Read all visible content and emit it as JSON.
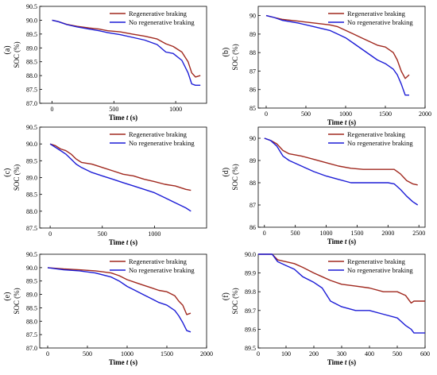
{
  "figure": {
    "series_names": [
      "Regenerative braking",
      "No regenerative braking"
    ],
    "series_colors": [
      "#a0281e",
      "#1c1cd6"
    ]
  },
  "chart_data": [
    {
      "type": "line",
      "panel_label": "(a)",
      "xlabel_main": "Time ",
      "xlabel_var": "t",
      "xlabel_unit": " (s)",
      "ylabel": "SOC (%)",
      "xlim": [
        -100,
        1250
      ],
      "ylim": [
        87.0,
        90.5
      ],
      "xticks": [
        0,
        500,
        1000
      ],
      "yticks": [
        87.0,
        87.5,
        88.0,
        88.5,
        89.0,
        89.5,
        90.0,
        90.5
      ],
      "ytick_labels": [
        "87.0",
        "87.5",
        "88.0",
        "88.5",
        "89.0",
        "89.5",
        "90.0",
        "90.5"
      ],
      "legend": "top-right",
      "series": [
        {
          "name": "Regenerative braking",
          "x": [
            0,
            50,
            120,
            200,
            300,
            380,
            450,
            550,
            650,
            750,
            850,
            920,
            980,
            1050,
            1100,
            1130,
            1160,
            1200
          ],
          "y": [
            90.0,
            89.95,
            89.85,
            89.78,
            89.72,
            89.68,
            89.62,
            89.58,
            89.5,
            89.42,
            89.32,
            89.15,
            89.05,
            88.85,
            88.5,
            88.1,
            87.95,
            88.0
          ]
        },
        {
          "name": "No regenerative braking",
          "x": [
            0,
            50,
            120,
            200,
            300,
            380,
            450,
            550,
            650,
            750,
            850,
            920,
            980,
            1050,
            1100,
            1130,
            1160,
            1200
          ],
          "y": [
            90.0,
            89.95,
            89.84,
            89.76,
            89.68,
            89.62,
            89.55,
            89.48,
            89.38,
            89.28,
            89.12,
            88.85,
            88.8,
            88.55,
            88.1,
            87.7,
            87.65,
            87.65
          ]
        }
      ]
    },
    {
      "type": "line",
      "panel_label": "(b)",
      "xlabel_main": "Time ",
      "xlabel_var": "t",
      "xlabel_unit": " (s)",
      "ylabel": "SOC (%)",
      "xlim": [
        -100,
        2000
      ],
      "ylim": [
        85,
        90.5
      ],
      "xticks": [
        0,
        500,
        1000,
        1500,
        2000
      ],
      "yticks": [
        85,
        86,
        87,
        88,
        89,
        90
      ],
      "ytick_labels": [
        "85",
        "86",
        "87",
        "88",
        "89",
        "90"
      ],
      "legend": "top-right",
      "series": [
        {
          "name": "Regenerative braking",
          "x": [
            0,
            100,
            200,
            400,
            600,
            800,
            900,
            1000,
            1100,
            1200,
            1300,
            1400,
            1500,
            1600,
            1650,
            1700,
            1750,
            1800
          ],
          "y": [
            90.0,
            89.9,
            89.8,
            89.7,
            89.6,
            89.5,
            89.4,
            89.2,
            89.0,
            88.8,
            88.6,
            88.4,
            88.3,
            88.0,
            87.6,
            87.0,
            86.6,
            86.8
          ]
        },
        {
          "name": "No regenerative braking",
          "x": [
            0,
            100,
            200,
            400,
            600,
            800,
            900,
            1000,
            1100,
            1200,
            1300,
            1400,
            1500,
            1600,
            1650,
            1700,
            1750,
            1800
          ],
          "y": [
            90.0,
            89.9,
            89.75,
            89.6,
            89.4,
            89.2,
            89.0,
            88.8,
            88.5,
            88.2,
            87.9,
            87.6,
            87.4,
            87.1,
            86.8,
            86.3,
            85.7,
            85.7
          ]
        }
      ]
    },
    {
      "type": "line",
      "panel_label": "(c)",
      "xlabel_main": "Time ",
      "xlabel_var": "t",
      "xlabel_unit": " (s)",
      "ylabel": "SOC (%)",
      "xlim": [
        -100,
        1500
      ],
      "ylim": [
        87.5,
        90.5
      ],
      "xticks": [
        0,
        500,
        1000
      ],
      "yticks": [
        87.5,
        88.0,
        88.5,
        89.0,
        89.5,
        90.0,
        90.5
      ],
      "ytick_labels": [
        "87.5",
        "88.0",
        "88.5",
        "89.0",
        "89.5",
        "90.0",
        "90.5"
      ],
      "legend": "top-right",
      "series": [
        {
          "name": "Regenerative braking",
          "x": [
            0,
            50,
            100,
            150,
            200,
            250,
            300,
            400,
            500,
            600,
            700,
            800,
            900,
            1000,
            1100,
            1200,
            1300,
            1350
          ],
          "y": [
            90.0,
            89.95,
            89.85,
            89.8,
            89.7,
            89.55,
            89.45,
            89.4,
            89.3,
            89.2,
            89.1,
            89.05,
            88.95,
            88.88,
            88.8,
            88.75,
            88.65,
            88.62
          ]
        },
        {
          "name": "No regenerative braking",
          "x": [
            0,
            50,
            100,
            150,
            200,
            250,
            300,
            400,
            500,
            600,
            700,
            800,
            900,
            1000,
            1100,
            1200,
            1300,
            1350
          ],
          "y": [
            90.0,
            89.9,
            89.8,
            89.7,
            89.55,
            89.4,
            89.3,
            89.15,
            89.05,
            88.95,
            88.85,
            88.75,
            88.65,
            88.55,
            88.4,
            88.25,
            88.1,
            88.0
          ]
        }
      ]
    },
    {
      "type": "line",
      "panel_label": "(d)",
      "xlabel_main": "Time ",
      "xlabel_var": "t",
      "xlabel_unit": " (s)",
      "ylabel": "SOC (%)",
      "xlim": [
        -100,
        2600
      ],
      "ylim": [
        86,
        90.5
      ],
      "xticks": [
        0,
        500,
        1000,
        1500,
        2000,
        2500
      ],
      "yticks": [
        86,
        87,
        88,
        89,
        90
      ],
      "ytick_labels": [
        "86",
        "87",
        "88",
        "89",
        "90"
      ],
      "legend": "top-right",
      "series": [
        {
          "name": "Regenerative braking",
          "x": [
            0,
            100,
            200,
            300,
            400,
            600,
            800,
            1000,
            1200,
            1400,
            1600,
            1800,
            2000,
            2100,
            2200,
            2300,
            2400,
            2480
          ],
          "y": [
            90.0,
            89.9,
            89.75,
            89.45,
            89.3,
            89.2,
            89.05,
            88.9,
            88.75,
            88.65,
            88.6,
            88.6,
            88.6,
            88.6,
            88.4,
            88.1,
            87.95,
            87.9
          ]
        },
        {
          "name": "No regenerative braking",
          "x": [
            0,
            100,
            200,
            300,
            400,
            600,
            800,
            1000,
            1200,
            1400,
            1600,
            1800,
            2000,
            2100,
            2200,
            2300,
            2400,
            2480
          ],
          "y": [
            90.0,
            89.9,
            89.65,
            89.2,
            89.0,
            88.75,
            88.5,
            88.3,
            88.15,
            88.0,
            88.0,
            88.0,
            88.0,
            87.95,
            87.7,
            87.4,
            87.15,
            87.0
          ]
        }
      ]
    },
    {
      "type": "line",
      "panel_label": "(e)",
      "xlabel_main": "Time ",
      "xlabel_var": "t",
      "xlabel_unit": " (s)",
      "ylabel": "SOC (%)",
      "xlim": [
        -100,
        2000
      ],
      "ylim": [
        87.0,
        90.5
      ],
      "xticks": [
        0,
        500,
        1000,
        1500,
        2000
      ],
      "yticks": [
        87.0,
        87.5,
        88.0,
        88.5,
        89.0,
        89.5,
        90.0,
        90.5
      ],
      "ytick_labels": [
        "87.0",
        "87.5",
        "88.0",
        "88.5",
        "89.0",
        "89.5",
        "90.0",
        "90.5"
      ],
      "legend": "top-right",
      "series": [
        {
          "name": "Regenerative braking",
          "x": [
            0,
            200,
            400,
            600,
            800,
            900,
            1000,
            1100,
            1200,
            1300,
            1400,
            1500,
            1600,
            1650,
            1700,
            1750,
            1800
          ],
          "y": [
            90.0,
            89.95,
            89.92,
            89.88,
            89.8,
            89.7,
            89.55,
            89.45,
            89.35,
            89.25,
            89.15,
            89.1,
            88.95,
            88.75,
            88.6,
            88.25,
            88.3
          ]
        },
        {
          "name": "No regenerative braking",
          "x": [
            0,
            200,
            400,
            600,
            800,
            900,
            1000,
            1100,
            1200,
            1300,
            1400,
            1500,
            1600,
            1650,
            1700,
            1750,
            1800
          ],
          "y": [
            90.0,
            89.92,
            89.88,
            89.8,
            89.65,
            89.5,
            89.3,
            89.15,
            89.0,
            88.85,
            88.7,
            88.6,
            88.4,
            88.2,
            87.95,
            87.65,
            87.6
          ]
        }
      ]
    },
    {
      "type": "line",
      "panel_label": "(f)",
      "xlabel_main": "Time ",
      "xlabel_var": "t",
      "xlabel_unit": " (s)",
      "ylabel": "SOC (%)",
      "xlim": [
        0,
        600
      ],
      "ylim": [
        89.5,
        90.0
      ],
      "xticks": [
        0,
        100,
        200,
        300,
        400,
        500,
        600
      ],
      "yticks": [
        89.5,
        89.6,
        89.7,
        89.8,
        89.9,
        90.0
      ],
      "ytick_labels": [
        "89.5",
        "89.6",
        "89.7",
        "89.8",
        "89.9",
        "90.0"
      ],
      "legend": "top-right",
      "series": [
        {
          "name": "Regenerative braking",
          "x": [
            0,
            50,
            70,
            100,
            130,
            160,
            200,
            230,
            260,
            300,
            350,
            400,
            450,
            500,
            530,
            550,
            560,
            600
          ],
          "y": [
            90.0,
            90.0,
            89.97,
            89.96,
            89.95,
            89.93,
            89.9,
            89.88,
            89.86,
            89.84,
            89.83,
            89.82,
            89.8,
            89.8,
            89.78,
            89.74,
            89.75,
            89.75
          ]
        },
        {
          "name": "No regenerative braking",
          "x": [
            0,
            50,
            70,
            100,
            130,
            160,
            200,
            230,
            260,
            300,
            350,
            400,
            450,
            500,
            530,
            550,
            560,
            600
          ],
          "y": [
            90.0,
            90.0,
            89.96,
            89.94,
            89.92,
            89.88,
            89.85,
            89.82,
            89.75,
            89.72,
            89.7,
            89.7,
            89.68,
            89.66,
            89.62,
            89.6,
            89.58,
            89.58
          ]
        }
      ]
    }
  ]
}
